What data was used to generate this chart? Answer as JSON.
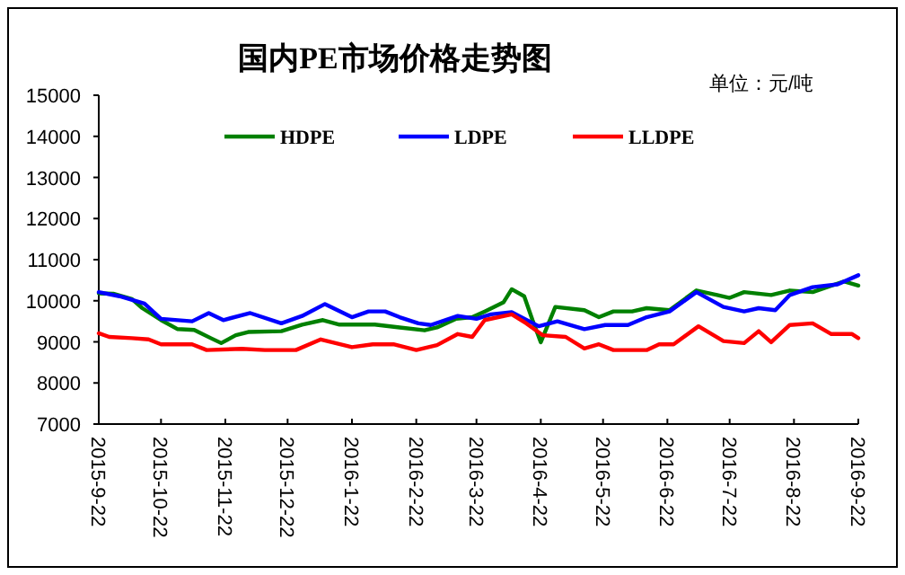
{
  "chart_data": {
    "type": "line",
    "title": "国内PE市场价格走势图",
    "annotations": [
      "单位：元/吨"
    ],
    "legend": "top",
    "grid": false,
    "marker": "none",
    "line_style": "solid",
    "xlim": [
      "2015-09-22",
      "2016-09-22"
    ],
    "xticks": [
      {
        "value": "2015-09-22",
        "label": "2015-9-22"
      },
      {
        "value": "2015-10-22",
        "label": "2015-10-22"
      },
      {
        "value": "2015-11-22",
        "label": "2015-11-22"
      },
      {
        "value": "2015-12-22",
        "label": "2015-12-22"
      },
      {
        "value": "2016-01-22",
        "label": "2016-1-22"
      },
      {
        "value": "2016-02-22",
        "label": "2016-2-22"
      },
      {
        "value": "2016-03-22",
        "label": "2016-3-22"
      },
      {
        "value": "2016-04-22",
        "label": "2016-4-22"
      },
      {
        "value": "2016-05-22",
        "label": "2016-5-22"
      },
      {
        "value": "2016-06-22",
        "label": "2016-6-22"
      },
      {
        "value": "2016-07-22",
        "label": "2016-7-22"
      },
      {
        "value": "2016-08-22",
        "label": "2016-8-22"
      },
      {
        "value": "2016-09-22",
        "label": "2016-9-22"
      }
    ],
    "ylim": [
      7000,
      15000
    ],
    "yticks": [
      7000,
      8000,
      9000,
      10000,
      11000,
      12000,
      13000,
      14000,
      15000
    ],
    "series": [
      {
        "name": "HDPE",
        "color": "#008000",
        "x": [
          "2015-09-22",
          "2015-09-29",
          "2015-10-08",
          "2015-10-13",
          "2015-10-22",
          "2015-10-30",
          "2015-11-07",
          "2015-11-15",
          "2015-11-20",
          "2015-11-27",
          "2015-12-03",
          "2015-12-19",
          "2015-12-29",
          "2016-01-08",
          "2016-01-16",
          "2016-02-02",
          "2016-02-14",
          "2016-02-26",
          "2016-03-03",
          "2016-03-12",
          "2016-03-20",
          "2016-03-26",
          "2016-04-04",
          "2016-04-08",
          "2016-04-14",
          "2016-04-18",
          "2016-04-22",
          "2016-04-29",
          "2016-05-13",
          "2016-05-20",
          "2016-05-27",
          "2016-06-05",
          "2016-06-12",
          "2016-06-23",
          "2016-07-06",
          "2016-07-16",
          "2016-07-22",
          "2016-07-29",
          "2016-08-11",
          "2016-08-20",
          "2016-08-31",
          "2016-09-15",
          "2016-09-22"
        ],
        "values": [
          10180,
          10170,
          10040,
          9820,
          9530,
          9310,
          9290,
          9090,
          8970,
          9160,
          9240,
          9260,
          9420,
          9530,
          9420,
          9420,
          9350,
          9280,
          9350,
          9560,
          9600,
          9740,
          9960,
          10280,
          10110,
          9530,
          8990,
          9850,
          9770,
          9600,
          9740,
          9740,
          9820,
          9770,
          10250,
          10140,
          10070,
          10210,
          10140,
          10250,
          10210,
          10470,
          10370
        ]
      },
      {
        "name": "LDPE",
        "color": "#0000ff",
        "x": [
          "2015-09-22",
          "2015-10-02",
          "2015-10-14",
          "2015-10-22",
          "2015-11-06",
          "2015-11-14",
          "2015-11-21",
          "2015-12-04",
          "2015-12-19",
          "2015-12-29",
          "2016-01-09",
          "2016-01-22",
          "2016-01-30",
          "2016-02-07",
          "2016-02-14",
          "2016-02-23",
          "2016-02-29",
          "2016-03-13",
          "2016-03-22",
          "2016-03-29",
          "2016-04-08",
          "2016-04-21",
          "2016-04-30",
          "2016-05-13",
          "2016-05-23",
          "2016-06-03",
          "2016-06-12",
          "2016-06-23",
          "2016-07-06",
          "2016-07-19",
          "2016-07-29",
          "2016-08-05",
          "2016-08-13",
          "2016-08-20",
          "2016-08-31",
          "2016-09-12",
          "2016-09-22"
        ],
        "values": [
          10210,
          10110,
          9930,
          9560,
          9500,
          9700,
          9530,
          9700,
          9450,
          9630,
          9920,
          9600,
          9740,
          9740,
          9600,
          9450,
          9410,
          9630,
          9560,
          9670,
          9720,
          9380,
          9500,
          9310,
          9410,
          9410,
          9600,
          9740,
          10210,
          9850,
          9740,
          9820,
          9770,
          10140,
          10330,
          10400,
          10620
        ]
      },
      {
        "name": "LLDPE",
        "color": "#ff0000",
        "x": [
          "2015-09-22",
          "2015-09-27",
          "2015-10-08",
          "2015-10-16",
          "2015-10-22",
          "2015-11-06",
          "2015-11-13",
          "2015-11-30",
          "2015-12-11",
          "2015-12-26",
          "2016-01-07",
          "2016-01-22",
          "2016-02-01",
          "2016-02-11",
          "2016-02-22",
          "2016-03-03",
          "2016-03-13",
          "2016-03-20",
          "2016-03-26",
          "2016-04-08",
          "2016-04-15",
          "2016-04-23",
          "2016-05-04",
          "2016-05-13",
          "2016-05-20",
          "2016-05-27",
          "2016-06-12",
          "2016-06-18",
          "2016-06-25",
          "2016-07-07",
          "2016-07-19",
          "2016-07-29",
          "2016-08-05",
          "2016-08-11",
          "2016-08-20",
          "2016-08-31",
          "2016-09-09",
          "2016-09-19",
          "2016-09-22"
        ],
        "values": [
          9210,
          9120,
          9090,
          9060,
          8940,
          8940,
          8800,
          8830,
          8800,
          8800,
          9060,
          8870,
          8940,
          8940,
          8800,
          8920,
          9190,
          9120,
          9530,
          9670,
          9450,
          9160,
          9120,
          8840,
          8940,
          8800,
          8800,
          8940,
          8940,
          9380,
          9020,
          8970,
          9260,
          8990,
          9410,
          9450,
          9190,
          9190,
          9090
        ]
      }
    ]
  }
}
